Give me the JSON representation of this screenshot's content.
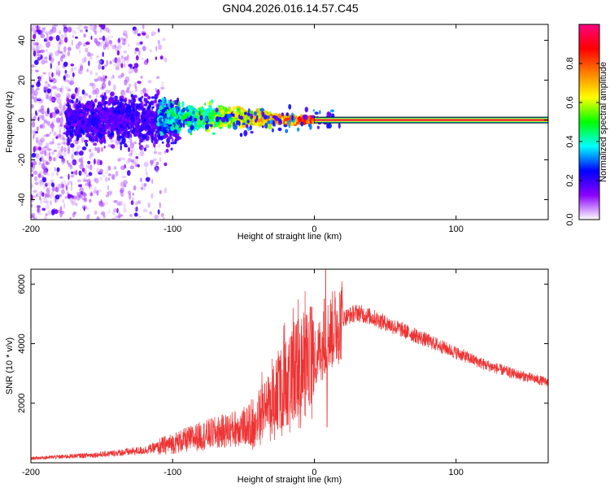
{
  "title": "GN04.2026.016.14.57.C45",
  "chart_data": [
    {
      "type": "heatmap",
      "name": "spectrogram",
      "xlabel": "Height of straight line (km)",
      "ylabel": "Frequency (Hz)",
      "xlim": [
        -200,
        165
      ],
      "ylim": [
        -50,
        48
      ],
      "xticks": [
        -200,
        -100,
        0,
        100
      ],
      "yticks": [
        -40,
        -20,
        0,
        20,
        40
      ],
      "colorbar": {
        "label": "Normalized spectral amplitude",
        "range": [
          0,
          1
        ],
        "ticks": [
          "0.0",
          "0.2",
          "0.4",
          "0.6",
          "0.8"
        ],
        "tick_values": [
          0.0,
          0.2,
          0.4,
          0.6,
          0.8
        ],
        "colors": [
          "#ffffff",
          "#8b00ff",
          "#0000ff",
          "#00ffff",
          "#00ff00",
          "#ffff00",
          "#ff8000",
          "#ff0000",
          "#ff0080"
        ]
      },
      "carrier": {
        "x_start": 0,
        "x_end": 165,
        "frequency": 0,
        "amplitude": 0.95
      },
      "features": [
        {
          "description": "low-amplitude scattered noise",
          "x_range": [
            -200,
            -120
          ],
          "freq_range": [
            -50,
            48
          ],
          "amplitude": 0.15
        },
        {
          "description": "noise band",
          "x_range": [
            -160,
            -100
          ],
          "freq_range": [
            -10,
            10
          ],
          "amplitude": 0.2
        },
        {
          "description": "emerging signal",
          "x_range": [
            -110,
            -25
          ],
          "freq_range": [
            -3,
            8
          ],
          "amplitude": 0.5
        },
        {
          "description": "converging signal",
          "x_range": [
            -30,
            0
          ],
          "freq_range": [
            -2,
            2
          ],
          "amplitude": 0.75
        }
      ]
    },
    {
      "type": "line",
      "name": "snr",
      "xlabel": "Height of straight line (km)",
      "ylabel": "SNR (10 * v/v)",
      "xlim": [
        -200,
        165
      ],
      "ylim": [
        0,
        6500
      ],
      "xticks": [
        -200,
        -100,
        0,
        100
      ],
      "yticks": [
        2000,
        4000,
        6000
      ],
      "color": "#ee3333",
      "envelope": [
        {
          "x": -200,
          "y": 150
        },
        {
          "x": -180,
          "y": 200
        },
        {
          "x": -150,
          "y": 280
        },
        {
          "x": -120,
          "y": 420
        },
        {
          "x": -100,
          "y": 650
        },
        {
          "x": -80,
          "y": 900
        },
        {
          "x": -60,
          "y": 1100
        },
        {
          "x": -45,
          "y": 1300
        },
        {
          "x": -30,
          "y": 2100
        },
        {
          "x": -20,
          "y": 2700
        },
        {
          "x": -10,
          "y": 3200
        },
        {
          "x": 0,
          "y": 3500
        },
        {
          "x": 10,
          "y": 4300
        },
        {
          "x": 20,
          "y": 4850
        },
        {
          "x": 30,
          "y": 5050
        },
        {
          "x": 40,
          "y": 4900
        },
        {
          "x": 60,
          "y": 4500
        },
        {
          "x": 80,
          "y": 4100
        },
        {
          "x": 100,
          "y": 3700
        },
        {
          "x": 120,
          "y": 3300
        },
        {
          "x": 140,
          "y": 3000
        },
        {
          "x": 165,
          "y": 2700
        }
      ],
      "spikes": [
        {
          "x": 8,
          "y": 6500
        },
        {
          "x": 7,
          "y": 5500
        },
        {
          "x": 9,
          "y": 1200
        },
        {
          "x": -3,
          "y": 5200
        }
      ]
    }
  ]
}
